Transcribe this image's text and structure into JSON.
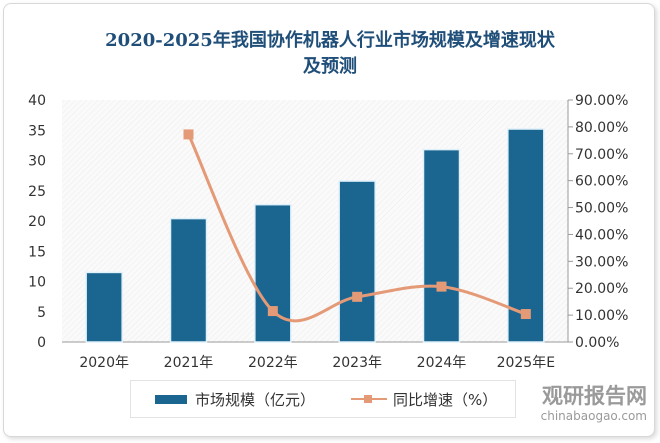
{
  "chart_data": {
    "type": "bar+line",
    "title_line1": "2020-2025年我国协作机器人行业市场规模及增速现状",
    "title_line2": "及预测",
    "categories": [
      "2020年",
      "2021年",
      "2022年",
      "2023年",
      "2024年",
      "2025年E"
    ],
    "series": [
      {
        "name": "市场规模（亿元）",
        "type": "bar",
        "axis": "left",
        "color": "#1b6690",
        "values": [
          11.5,
          20.4,
          22.7,
          26.6,
          31.8,
          35.2
        ]
      },
      {
        "name": "同比增速（%）",
        "type": "line",
        "axis": "right",
        "color": "#e59a77",
        "values": [
          null,
          77.2,
          11.5,
          16.8,
          20.6,
          10.4
        ]
      }
    ],
    "y_left": {
      "range": [
        0,
        40
      ],
      "ticks": [
        "0",
        "5",
        "10",
        "15",
        "20",
        "25",
        "30",
        "35",
        "40"
      ]
    },
    "y_right": {
      "range": [
        0,
        90
      ],
      "ticks": [
        "0.00%",
        "10.00%",
        "20.00%",
        "30.00%",
        "40.00%",
        "50.00%",
        "60.00%",
        "70.00%",
        "80.00%",
        "90.00%"
      ]
    },
    "grid": false,
    "legend_position": "bottom"
  },
  "watermark": {
    "cn": "观研报告网",
    "en": "chinabaogao.com"
  }
}
